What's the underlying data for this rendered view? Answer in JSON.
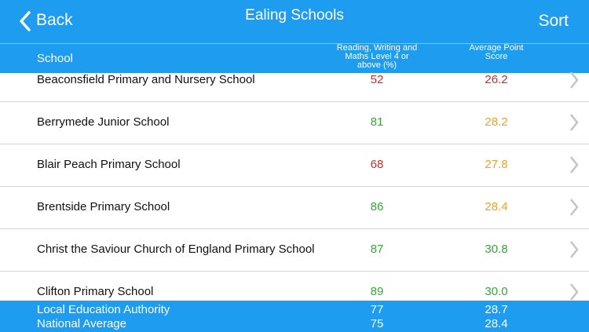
{
  "nav": {
    "back": "Back",
    "title": "Ealing Schools",
    "sort": "Sort"
  },
  "table": {
    "headers": [
      "School",
      "Reading, Writing and Maths Level 4 or above (%)",
      "Average Point Score"
    ],
    "rows": [
      {
        "school": "Beaconsfield Primary and Nursery School",
        "reading": "52",
        "reading_color": "#d42a2a",
        "score": "26.2",
        "score_color": "#d42a2a"
      },
      {
        "school": "Berrymede Junior School",
        "reading": "81",
        "reading_color": "#33a833",
        "score": "28.2",
        "score_color": "#f0a224"
      },
      {
        "school": "Blair Peach Primary School",
        "reading": "68",
        "reading_color": "#d42a2a",
        "score": "27.8",
        "score_color": "#f0a224"
      },
      {
        "school": "Brentside Primary School",
        "reading": "86",
        "reading_color": "#33a833",
        "score": "28.4",
        "score_color": "#f0a224"
      },
      {
        "school": "Christ the Saviour Church of England Primary School",
        "reading": "87",
        "reading_color": "#33a833",
        "score": "30.8",
        "score_color": "#33a833"
      },
      {
        "school": "Clifton Primary School",
        "reading": "89",
        "reading_color": "#33a833",
        "score": "30.0",
        "score_color": "#33a833"
      }
    ],
    "footer": [
      {
        "label": "Local Education Authority",
        "reading": "77",
        "score": "28.7"
      },
      {
        "label": "National Average",
        "reading": "75",
        "score": "28.4"
      }
    ]
  }
}
